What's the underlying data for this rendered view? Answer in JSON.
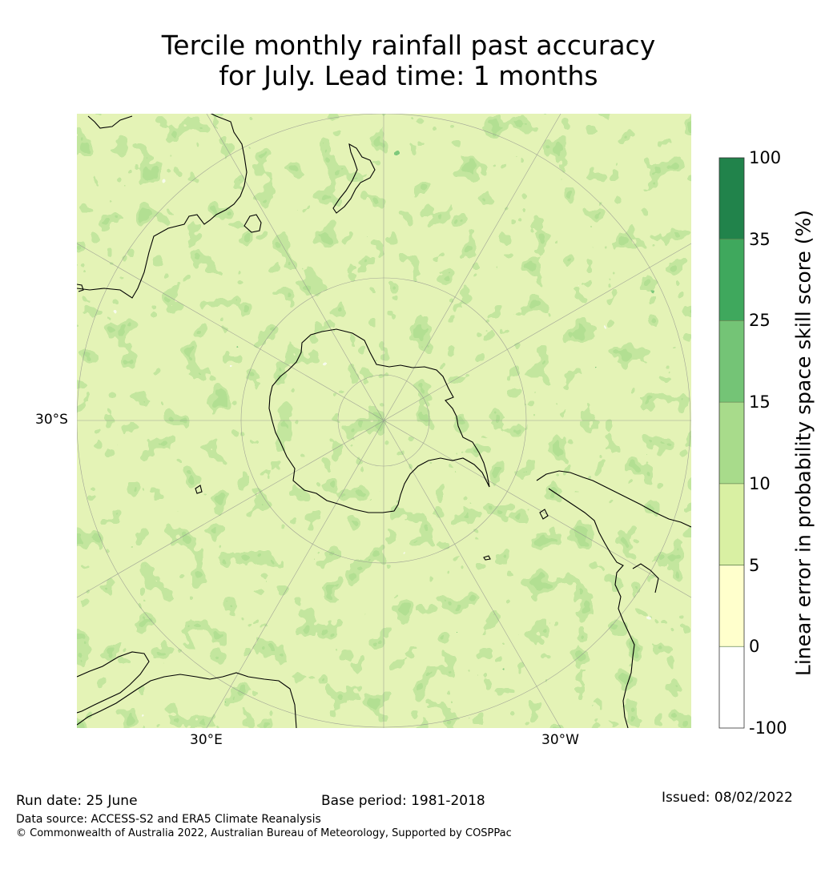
{
  "title": {
    "line1": "Tercile monthly rainfall past accuracy",
    "line2": "for July. Lead time: 1 months"
  },
  "map": {
    "projection": "south polar stereographic",
    "graticule_labels": {
      "lat_30s": "30°S",
      "lon_30e": "30°E",
      "lon_30w": "30°W"
    },
    "landmasses": [
      "Antarctica",
      "Australia",
      "New Zealand",
      "South America",
      "Africa",
      "Madagascar"
    ]
  },
  "colorbar": {
    "title": "Linear error in probability space skill score (%)",
    "ticks": [
      "100",
      "35",
      "25",
      "15",
      "10",
      "5",
      "0",
      "-100"
    ],
    "bins": [
      {
        "range": [
          35,
          100
        ],
        "color": "#21834b"
      },
      {
        "range": [
          25,
          35
        ],
        "color": "#3fa85d"
      },
      {
        "range": [
          15,
          25
        ],
        "color": "#74c476"
      },
      {
        "range": [
          10,
          15
        ],
        "color": "#a8db8b"
      },
      {
        "range": [
          5,
          10
        ],
        "color": "#d9f0a3"
      },
      {
        "range": [
          0,
          5
        ],
        "color": "#ffffcc"
      },
      {
        "range": [
          -100,
          0
        ],
        "color": "#ffffff"
      }
    ]
  },
  "footer": {
    "run_date": "Run date: 25 June",
    "base_period": "Base period: 1981-2018",
    "issued": "Issued: 08/02/2022",
    "data_source": "Data source: ACCESS-S2 and ERA5 Climate Reanalysis",
    "copyright": "© Commonwealth of Australia 2022, Australian Bureau of Meteorology, Supported by COSPPac"
  }
}
